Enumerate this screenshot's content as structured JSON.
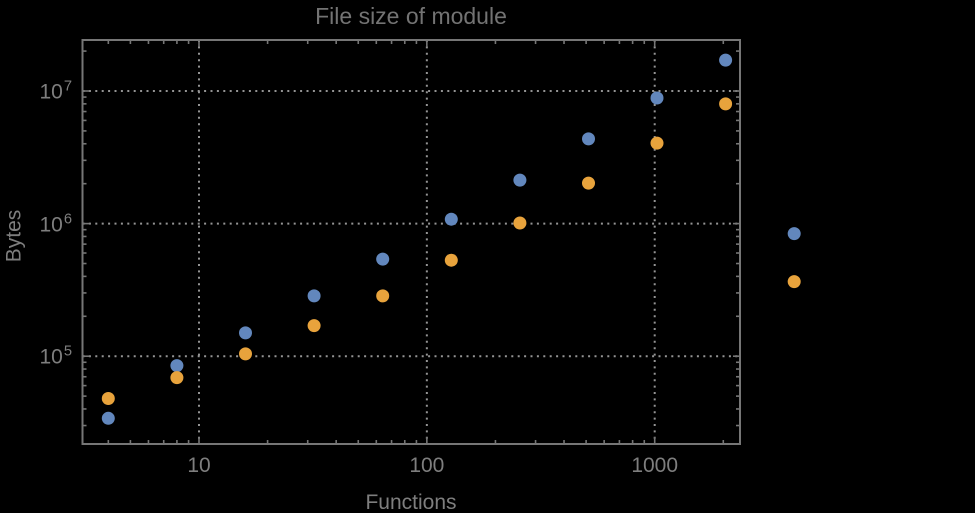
{
  "colors": {
    "background": "#000000",
    "frame": "#767676",
    "gridline": "#949494",
    "tick_label": "#7E7E7E",
    "title": "#737373",
    "series_blue": "#6287BD",
    "series_orange": "#E8A33C"
  },
  "chart_data": {
    "type": "scatter",
    "title": "File size of module",
    "xlabel": "Functions",
    "ylabel": "Bytes",
    "x_scale": "log",
    "y_scale": "log",
    "grid": "dotted",
    "legend": "none",
    "marker_size_px": 13,
    "x_range": [
      3.1,
      2370
    ],
    "y_range": [
      22000,
      24000000
    ],
    "x": [
      4,
      8,
      16,
      32,
      64,
      128,
      256,
      512,
      1024,
      2048,
      4096
    ],
    "series": [
      {
        "name": "blue",
        "color": "#6287BD",
        "values": [
          34000,
          85000,
          150000,
          285000,
          540000,
          1080000,
          2130000,
          4350000,
          8860000,
          17100000,
          840000
        ]
      },
      {
        "name": "orange",
        "color": "#E8A33C",
        "values": [
          48000,
          69000,
          104000,
          170000,
          285000,
          530000,
          1010000,
          2020000,
          4050000,
          8000000,
          365000
        ]
      }
    ],
    "x_ticks": [
      {
        "label": "10",
        "value": 10
      },
      {
        "label": "100",
        "value": 100
      },
      {
        "label": "1000",
        "value": 1000
      }
    ],
    "y_ticks": [
      {
        "base": "10",
        "exp": "5",
        "value": 100000
      },
      {
        "base": "10",
        "exp": "6",
        "value": 1000000
      },
      {
        "base": "10",
        "exp": "7",
        "value": 10000000
      }
    ]
  }
}
